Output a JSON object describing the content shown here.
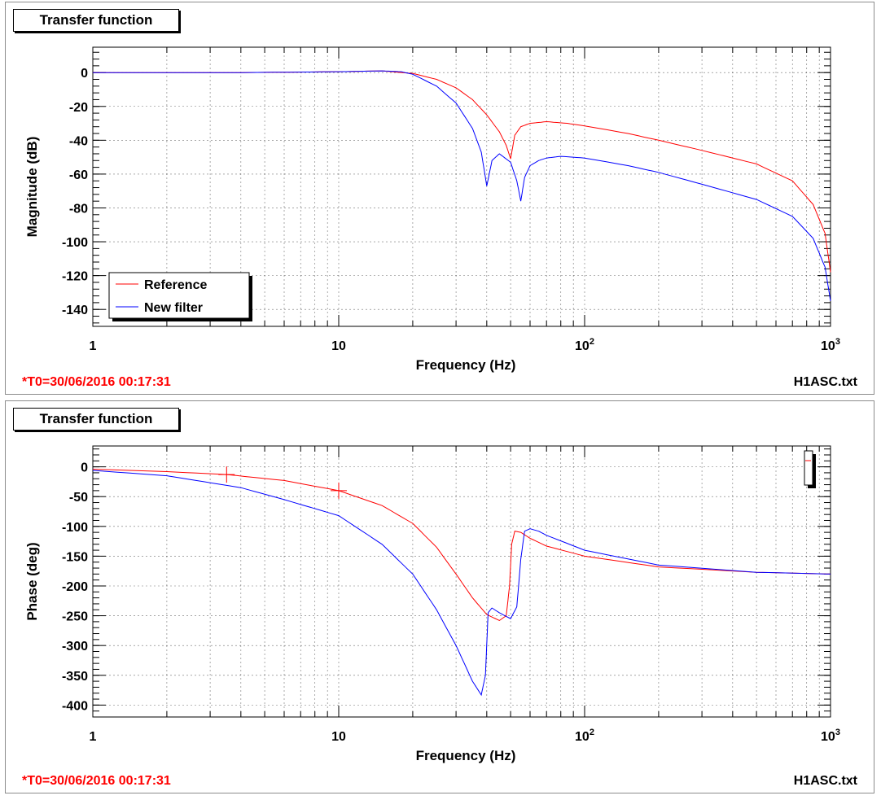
{
  "panels": [
    {
      "title_button": "Transfer function",
      "footer_time": "*T0=30/06/2016 00:17:31",
      "footer_file": "H1ASC.txt"
    },
    {
      "title_button": "Transfer function",
      "footer_time": "*T0=30/06/2016 00:17:31",
      "footer_file": "H1ASC.txt"
    }
  ],
  "chart_data": [
    {
      "type": "line",
      "xlabel": "Frequency (Hz)",
      "ylabel": "Magnitude (dB)",
      "xscale": "log",
      "xlim": [
        1,
        1000
      ],
      "ylim": [
        -150,
        15
      ],
      "x_ticks": [
        {
          "value": 1,
          "label": "1",
          "exp": ""
        },
        {
          "value": 10,
          "label": "10",
          "exp": ""
        },
        {
          "value": 100,
          "label": "10",
          "exp": "2"
        },
        {
          "value": 1000,
          "label": "10",
          "exp": "3"
        }
      ],
      "y_ticks": [
        0,
        -20,
        -40,
        -60,
        -80,
        -100,
        -120,
        -140
      ],
      "grid": true,
      "legend_position": "bottom-left",
      "series": [
        {
          "name": "Reference",
          "color": "#ff0000",
          "x": [
            1,
            4,
            10,
            15,
            20,
            25,
            30,
            35,
            40,
            45,
            48,
            50,
            52,
            55,
            60,
            70,
            85,
            100,
            150,
            200,
            300,
            500,
            700,
            850,
            950,
            1000
          ],
          "y": [
            0,
            0,
            0.5,
            1,
            -0.5,
            -4,
            -9,
            -16,
            -25,
            -35,
            -43,
            -51,
            -37,
            -32,
            -30,
            -29,
            -30,
            -31.5,
            -36,
            -40,
            -46,
            -54,
            -64,
            -78,
            -95,
            -118
          ]
        },
        {
          "name": "New filter",
          "color": "#0000ff",
          "x": [
            1,
            4,
            10,
            15,
            18,
            20,
            25,
            30,
            35,
            38,
            40,
            42,
            45,
            50,
            53,
            55,
            57,
            60,
            65,
            70,
            80,
            100,
            150,
            200,
            300,
            500,
            700,
            850,
            950,
            1000
          ],
          "y": [
            0,
            0,
            0.5,
            1,
            0.5,
            -1,
            -8,
            -18,
            -33,
            -47,
            -67,
            -52,
            -48,
            -53,
            -64,
            -76,
            -62,
            -55,
            -52,
            -50.5,
            -49.5,
            -50.5,
            -55,
            -59,
            -66,
            -75,
            -85,
            -98,
            -115,
            -135
          ]
        }
      ]
    },
    {
      "type": "line",
      "xlabel": "Frequency (Hz)",
      "ylabel": "Phase (deg)",
      "xscale": "log",
      "xlim": [
        1,
        1000
      ],
      "ylim": [
        -420,
        35
      ],
      "x_ticks": [
        {
          "value": 1,
          "label": "1",
          "exp": ""
        },
        {
          "value": 10,
          "label": "10",
          "exp": ""
        },
        {
          "value": 100,
          "label": "10",
          "exp": "2"
        },
        {
          "value": 1000,
          "label": "10",
          "exp": "3"
        }
      ],
      "y_ticks": [
        0,
        -50,
        -100,
        -150,
        -200,
        -250,
        -300,
        -350,
        -400
      ],
      "grid": true,
      "legend_position": "top-right",
      "series": [
        {
          "name": "",
          "color": "#ff0000",
          "x": [
            1,
            2,
            3.5,
            6,
            10,
            15,
            20,
            25,
            30,
            35,
            40,
            45,
            48,
            49.5,
            50.5,
            52,
            55,
            60,
            70,
            100,
            200,
            500,
            1000
          ],
          "y": [
            -4,
            -8,
            -13,
            -23,
            -40,
            -65,
            -95,
            -135,
            -180,
            -220,
            -248,
            -258,
            -250,
            -200,
            -130,
            -108,
            -110,
            -120,
            -133,
            -150,
            -168,
            -177,
            -180
          ]
        },
        {
          "name": "",
          "color": "#0000ff",
          "x": [
            1,
            2,
            4,
            6,
            10,
            15,
            20,
            25,
            30,
            35,
            38,
            39.5,
            40.5,
            42,
            45,
            50,
            53,
            55,
            57,
            60,
            65,
            70,
            100,
            200,
            500,
            1000
          ],
          "y": [
            -6,
            -15,
            -35,
            -55,
            -82,
            -130,
            -180,
            -240,
            -300,
            -360,
            -383,
            -350,
            -245,
            -237,
            -245,
            -255,
            -235,
            -155,
            -108,
            -104,
            -108,
            -115,
            -140,
            -165,
            -177,
            -180
          ]
        }
      ]
    }
  ]
}
